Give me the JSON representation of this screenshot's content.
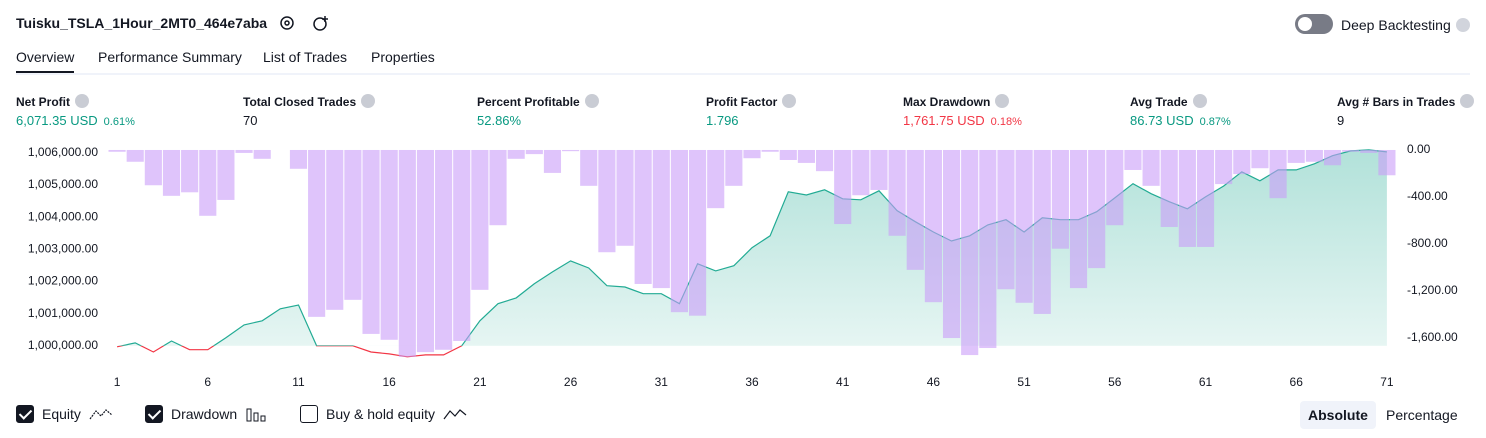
{
  "header": {
    "title": "Tuisku_TSLA_1Hour_2MT0_464e7aba",
    "deep_backtesting": "Deep Backtesting"
  },
  "tabs": [
    "Overview",
    "Performance Summary",
    "List of Trades",
    "Properties"
  ],
  "metrics": [
    {
      "label": "Net Profit",
      "value": "6,071.35 USD",
      "percent": "0.61%",
      "tone": "pos"
    },
    {
      "label": "Total Closed Trades",
      "value": "70",
      "tone": "neutral"
    },
    {
      "label": "Percent Profitable",
      "value": "52.86%",
      "tone": "pos"
    },
    {
      "label": "Profit Factor",
      "value": "1.796",
      "tone": "pos"
    },
    {
      "label": "Max Drawdown",
      "value": "1,761.75 USD",
      "percent": "0.18%",
      "tone": "neg"
    },
    {
      "label": "Avg Trade",
      "value": "86.73 USD",
      "percent": "0.87%",
      "tone": "pos"
    },
    {
      "label": "Avg # Bars in Trades",
      "value": "9",
      "tone": "neutral"
    }
  ],
  "chart_data": {
    "type": "combo",
    "x": [
      1,
      2,
      3,
      4,
      5,
      6,
      7,
      8,
      9,
      10,
      11,
      12,
      13,
      14,
      15,
      16,
      17,
      18,
      19,
      20,
      21,
      22,
      23,
      24,
      25,
      26,
      27,
      28,
      29,
      30,
      31,
      32,
      33,
      34,
      35,
      36,
      37,
      38,
      39,
      40,
      41,
      42,
      43,
      44,
      45,
      46,
      47,
      48,
      49,
      50,
      51,
      52,
      53,
      54,
      55,
      56,
      57,
      58,
      59,
      60,
      61,
      62,
      63,
      64,
      65,
      66,
      67,
      68,
      69,
      70,
      71
    ],
    "xlim": [
      0.5,
      71.5
    ],
    "xticks": [
      1,
      6,
      11,
      16,
      21,
      26,
      31,
      36,
      41,
      46,
      51,
      56,
      61,
      66,
      71
    ],
    "ylim": [
      999560,
      1006150
    ],
    "yticks": [
      {
        "value": 1000000,
        "label": "1,000,000.00"
      },
      {
        "value": 1001000,
        "label": "1,001,000.00"
      },
      {
        "value": 1002000,
        "label": "1,002,000.00"
      },
      {
        "value": 1003000,
        "label": "1,003,000.00"
      },
      {
        "value": 1004000,
        "label": "1,004,000.00"
      },
      {
        "value": 1005000,
        "label": "1,005,000.00"
      },
      {
        "value": 1006000,
        "label": "1,006,000.00"
      }
    ],
    "y2lim": [
      -1787,
      17
    ],
    "y2ticks": [
      {
        "value": 0,
        "label": "0.00"
      },
      {
        "value": -400,
        "label": "-400.00"
      },
      {
        "value": -800,
        "label": "-800.00"
      },
      {
        "value": -1200,
        "label": "-1,200.00"
      },
      {
        "value": -1600,
        "label": "-1,600.00"
      }
    ],
    "baseline": 1000000,
    "series": [
      {
        "name": "Equity",
        "type": "line",
        "color": "#22ab94",
        "negative_color": "#f23645",
        "values": [
          999970,
          1000090,
          999810,
          1000150,
          999880,
          999880,
          1000250,
          1000650,
          1000780,
          1001150,
          1001270,
          1000000,
          1000000,
          1000000,
          999810,
          999750,
          999660,
          999720,
          999720,
          1000000,
          1000780,
          1001310,
          1001490,
          1001930,
          1002300,
          1002640,
          1002420,
          1001870,
          1001830,
          1001620,
          1001620,
          1001310,
          1002550,
          1002330,
          1002490,
          1003050,
          1003420,
          1004790,
          1004690,
          1004850,
          1004570,
          1004540,
          1004820,
          1004200,
          1003860,
          1003540,
          1003260,
          1003420,
          1003760,
          1003920,
          1003540,
          1003980,
          1003920,
          1003920,
          1004170,
          1004600,
          1005040,
          1004730,
          1004480,
          1004260,
          1004630,
          1004970,
          1005410,
          1005130,
          1005470,
          1005470,
          1005660,
          1005910,
          1006060,
          1006090,
          1006030
        ]
      },
      {
        "name": "Drawdown",
        "type": "bar",
        "axis": "y2",
        "color": "#c99cf8",
        "values": [
          -15,
          -100,
          -300,
          -390,
          -360,
          -560,
          -425,
          -25,
          -75,
          0,
          -160,
          -1420,
          -1360,
          -1275,
          -1565,
          -1615,
          -1760,
          -1720,
          -1700,
          -1625,
          -1190,
          -640,
          -75,
          -35,
          -195,
          -10,
          -305,
          -870,
          -815,
          -1140,
          -1175,
          -1380,
          -1410,
          -495,
          -305,
          -70,
          -15,
          -85,
          -110,
          -180,
          -630,
          -385,
          -340,
          -730,
          -1020,
          -1295,
          -1600,
          -1745,
          -1685,
          -1185,
          -1300,
          -1395,
          -840,
          -1175,
          -1005,
          -640,
          -170,
          -305,
          -655,
          -825,
          -825,
          -290,
          -205,
          -155,
          -410,
          -110,
          -100,
          -130,
          -15,
          -25,
          -215
        ]
      }
    ]
  },
  "legend_options": [
    {
      "label": "Equity",
      "checked": true
    },
    {
      "label": "Drawdown",
      "checked": true
    },
    {
      "label": "Buy & hold equity",
      "checked": false
    }
  ],
  "scale_modes": [
    {
      "label": "Absolute",
      "active": true
    },
    {
      "label": "Percentage",
      "active": false
    }
  ]
}
